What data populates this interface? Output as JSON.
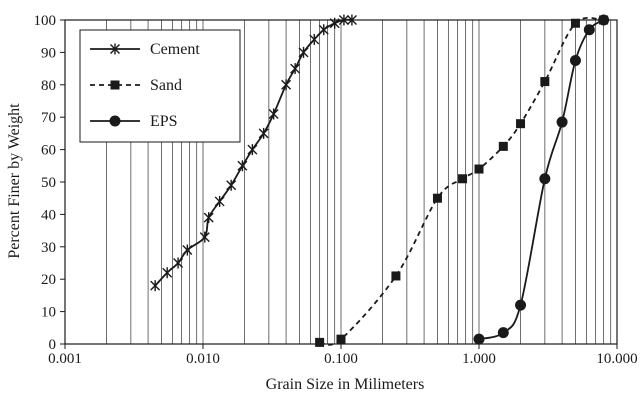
{
  "chart_data": {
    "type": "line",
    "title": "",
    "xlabel": "Grain Size in Milimeters",
    "ylabel": "Percent Finer by Weight",
    "xscale": "log",
    "xlim": [
      0.001,
      10
    ],
    "ylim": [
      0,
      100
    ],
    "x_ticks": [
      "0.001",
      "0.010",
      "0.100",
      "1.000",
      "10.000"
    ],
    "y_ticks": [
      "0",
      "10",
      "20",
      "30",
      "40",
      "50",
      "60",
      "70",
      "80",
      "90",
      "100"
    ],
    "grid": "vertical log minor gridlines",
    "legend_position": "top-left",
    "series": [
      {
        "name": "Cement",
        "line": "solid",
        "marker": "asterisk",
        "color": "#1a1a1a",
        "points": [
          [
            0.0045,
            18
          ],
          [
            0.0055,
            22
          ],
          [
            0.0066,
            25
          ],
          [
            0.0077,
            29
          ],
          [
            0.0103,
            33
          ],
          [
            0.011,
            39
          ],
          [
            0.0132,
            44
          ],
          [
            0.016,
            49
          ],
          [
            0.0193,
            55
          ],
          [
            0.0228,
            60
          ],
          [
            0.0275,
            65
          ],
          [
            0.0325,
            71
          ],
          [
            0.04,
            80
          ],
          [
            0.0465,
            85
          ],
          [
            0.0535,
            90
          ],
          [
            0.064,
            94
          ],
          [
            0.075,
            97
          ],
          [
            0.09,
            99
          ],
          [
            0.105,
            100
          ],
          [
            0.12,
            100
          ]
        ]
      },
      {
        "name": "Sand",
        "line": "dashed",
        "marker": "square",
        "color": "#1a1a1a",
        "points": [
          [
            0.07,
            0.5
          ],
          [
            0.1,
            1.5
          ],
          [
            0.25,
            21
          ],
          [
            0.5,
            45
          ],
          [
            0.76,
            51
          ],
          [
            1.0,
            54
          ],
          [
            1.5,
            61
          ],
          [
            2.0,
            68
          ],
          [
            3.0,
            81
          ],
          [
            5.0,
            99
          ],
          [
            8.0,
            100
          ]
        ]
      },
      {
        "name": "EPS",
        "line": "solid",
        "marker": "circle",
        "color": "#1a1a1a",
        "points": [
          [
            1.0,
            1.5
          ],
          [
            1.5,
            3.5
          ],
          [
            2.0,
            12
          ],
          [
            3.0,
            51
          ],
          [
            4.0,
            68.5
          ],
          [
            5.0,
            87.5
          ],
          [
            6.3,
            97
          ],
          [
            8.0,
            100
          ]
        ]
      }
    ]
  }
}
